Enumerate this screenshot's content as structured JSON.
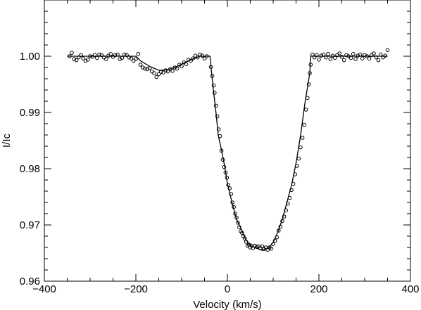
{
  "chart_data": {
    "type": "scatter",
    "xlabel": "Velocity (km/s)",
    "ylabel": "I/Ic",
    "xlim": [
      -400,
      400
    ],
    "ylim": [
      0.96,
      1.01
    ],
    "xticks": [
      {
        "value": -400,
        "label": "−400"
      },
      {
        "value": -200,
        "label": "−200"
      },
      0,
      200,
      400
    ],
    "yticks": [
      {
        "value": 0.96,
        "label": "0.96"
      },
      {
        "value": 0.97,
        "label": "0.97"
      },
      {
        "value": 0.98,
        "label": "0.98"
      },
      {
        "value": 0.99,
        "label": "0.99"
      },
      {
        "value": 1.0,
        "label": "1.00"
      }
    ],
    "xminorticks": [
      -350,
      -300,
      -250,
      -150,
      -100,
      -50,
      50,
      100,
      150,
      250,
      300,
      350
    ],
    "yminorticks": [
      0.962,
      0.964,
      0.966,
      0.968,
      0.972,
      0.974,
      0.976,
      0.978,
      0.982,
      0.984,
      0.986,
      0.988,
      0.992,
      0.994,
      0.996,
      0.998,
      1.002,
      1.004,
      1.006,
      1.008
    ],
    "series": [
      {
        "kind": "scatter",
        "color": "#000000",
        "x": [
          -345,
          -340,
          -335,
          -330,
          -325,
          -320,
          -315,
          -310,
          -305,
          -300,
          -295,
          -290,
          -285,
          -280,
          -275,
          -270,
          -265,
          -260,
          -255,
          -250,
          -245,
          -240,
          -235,
          -230,
          -225,
          -220,
          -215,
          -210,
          -205,
          -200,
          -195,
          -190,
          -185,
          -180,
          -175,
          -170,
          -165,
          -160,
          -155,
          -150,
          -145,
          -140,
          -135,
          -130,
          -125,
          -120,
          -115,
          -110,
          -105,
          -100,
          -95,
          -90,
          -85,
          -80,
          -75,
          -70,
          -65,
          -60,
          -55,
          -50,
          -45,
          -36,
          -33,
          -30,
          -28,
          -25,
          -22,
          -19,
          -16,
          -13,
          -10,
          -7,
          -4,
          -1,
          2,
          5,
          8,
          11,
          14,
          17,
          20,
          23,
          26,
          29,
          32,
          35,
          38,
          41,
          44,
          47,
          50,
          53,
          56,
          60,
          64,
          68,
          72,
          76,
          80,
          84,
          88,
          92,
          96,
          100,
          104,
          108,
          112,
          116,
          120,
          124,
          128,
          132,
          136,
          140,
          144,
          148,
          152,
          156,
          160,
          164,
          168,
          172,
          175,
          178,
          180,
          182,
          186,
          190,
          195,
          200,
          205,
          210,
          215,
          220,
          225,
          230,
          235,
          240,
          245,
          250,
          255,
          260,
          265,
          270,
          275,
          280,
          285,
          290,
          295,
          300,
          305,
          310,
          315,
          320,
          325,
          330,
          335,
          340,
          345,
          350
        ],
        "values": [
          1.0,
          1.0006,
          0.9995,
          0.9993,
          0.9998,
          1.0002,
          0.9996,
          0.9992,
          0.9994,
          1.0,
          0.9999,
          1.0002,
          0.9997,
          1.0003,
          1.0002,
          0.9998,
          0.9995,
          1.0001,
          1.0004,
          0.9999,
          1.0002,
          1.0003,
          0.9995,
          0.9997,
          1.0003,
          1.0002,
          0.9998,
          0.9996,
          0.9992,
          0.9995,
          1.0004,
          0.9985,
          0.998,
          0.9978,
          0.9977,
          0.9979,
          0.9973,
          0.997,
          0.9963,
          0.9968,
          0.9972,
          0.9971,
          0.9975,
          0.9973,
          0.9977,
          0.9974,
          0.998,
          0.9978,
          0.9985,
          0.9982,
          0.9989,
          0.9986,
          0.9994,
          0.9992,
          0.9996,
          1.0001,
          0.9998,
          1.0003,
          1.0001,
          0.9996,
          1.0,
          0.9981,
          0.9965,
          0.9948,
          0.9935,
          0.9912,
          0.9893,
          0.987,
          0.9858,
          0.9832,
          0.9816,
          0.9803,
          0.9793,
          0.9784,
          0.9771,
          0.9765,
          0.9755,
          0.974,
          0.9732,
          0.972,
          0.9713,
          0.9704,
          0.9696,
          0.9689,
          0.9686,
          0.968,
          0.9676,
          0.967,
          0.9663,
          0.9665,
          0.966,
          0.9663,
          0.9659,
          0.9663,
          0.9661,
          0.9662,
          0.9659,
          0.9662,
          0.9657,
          0.966,
          0.9656,
          0.966,
          0.9658,
          0.9666,
          0.9672,
          0.9678,
          0.969,
          0.9697,
          0.9707,
          0.9715,
          0.9726,
          0.9738,
          0.9748,
          0.9762,
          0.9773,
          0.979,
          0.9805,
          0.9818,
          0.9838,
          0.9855,
          0.9878,
          0.9905,
          0.9926,
          0.995,
          0.997,
          0.9985,
          1.0003,
          0.9998,
          1.0002,
          0.9994,
          1.0001,
          1.0003,
          0.9998,
          1.0004,
          0.9995,
          1.0001,
          0.9997,
          1.0002,
          1.0005,
          0.9999,
          0.9993,
          1.0002,
          1.0,
          0.9997,
          1.0004,
          0.9995,
          1.0001,
          1.0003,
          0.9996,
          1.0002,
          1.0,
          0.9996,
          1.0002,
          1.0005,
          0.9998,
          0.9993,
          1.0003,
          0.9998,
          1.0001,
          1.0011
        ]
      },
      {
        "kind": "line",
        "color": "#000000",
        "x": [
          -350,
          -200,
          -190,
          -170,
          -150,
          -130,
          -110,
          -90,
          -70,
          -60,
          -38,
          -35,
          -30,
          -25,
          -20,
          -12,
          -5,
          0,
          10,
          20,
          30,
          40,
          50,
          60,
          75,
          90,
          100,
          110,
          120,
          130,
          140,
          150,
          160,
          170,
          180,
          182,
          200,
          350
        ],
        "values": [
          1.0,
          1.0,
          0.9992,
          0.9982,
          0.9975,
          0.9976,
          0.9982,
          0.999,
          0.9997,
          1.0,
          1.0,
          0.9974,
          0.9936,
          0.99,
          0.986,
          0.983,
          0.98,
          0.9774,
          0.974,
          0.971,
          0.9693,
          0.9674,
          0.9664,
          0.966,
          0.9655,
          0.9659,
          0.9669,
          0.9687,
          0.971,
          0.974,
          0.977,
          0.981,
          0.986,
          0.992,
          0.997,
          1.0,
          1.0,
          1.0
        ]
      }
    ]
  }
}
